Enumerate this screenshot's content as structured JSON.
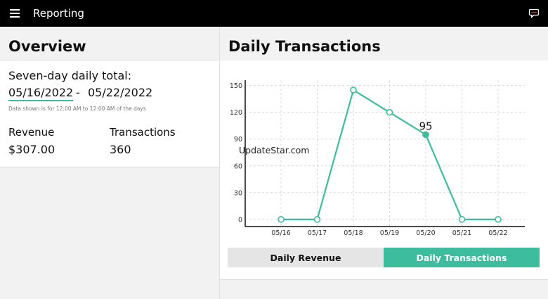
{
  "app": {
    "title": "Reporting"
  },
  "icons": {
    "menu": "hamburger-menu-icon",
    "feedback": "speech-bubble-icon"
  },
  "overview": {
    "title": "Overview",
    "summary_label": "Seven-day daily total:",
    "date_start": "05/16/2022",
    "date_separator": "-",
    "date_end": "05/22/2022",
    "note": "Data shown is for 12:00 AM to 12:00 AM of the days",
    "revenue_label": "Revenue",
    "revenue_value": "$307.00",
    "transactions_label": "Transactions",
    "transactions_value": "360"
  },
  "daily": {
    "title": "Daily Transactions",
    "watermark": "UpdateStar.com",
    "tabs": [
      {
        "label": "Daily Revenue",
        "active": false
      },
      {
        "label": "Daily Transactions",
        "active": true
      }
    ]
  },
  "colors": {
    "accent": "#3dbd9e",
    "topbar": "#000000"
  },
  "chart_data": {
    "type": "line",
    "categories": [
      "05/16",
      "05/17",
      "05/18",
      "05/19",
      "05/20",
      "05/21",
      "05/22"
    ],
    "series": [
      {
        "values": [
          0,
          0,
          145,
          120,
          95,
          0,
          0
        ]
      }
    ],
    "yticks": [
      0,
      30,
      60,
      90,
      120,
      150
    ],
    "ylim": [
      -8,
      156
    ],
    "highlighted": {
      "category": "05/20",
      "label": "95"
    },
    "grid": true
  }
}
